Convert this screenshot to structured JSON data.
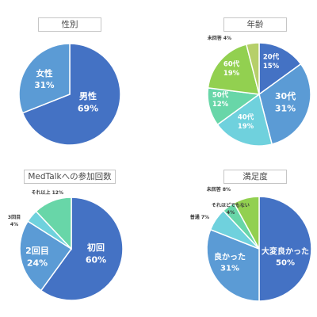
{
  "chart_data": [
    {
      "type": "pie",
      "title": "性別",
      "categories": [
        "男性",
        "女性"
      ],
      "values": [
        69,
        31
      ],
      "labels": [
        "69%",
        "31%"
      ],
      "colors": [
        "#4472c4",
        "#5b9bd5"
      ]
    },
    {
      "type": "pie",
      "title": "年齢",
      "categories": [
        "20代",
        "30代",
        "40代",
        "50代",
        "60代",
        "未回答"
      ],
      "values": [
        15,
        31,
        19,
        12,
        19,
        4
      ],
      "labels": [
        "15%",
        "31%",
        "19%",
        "12%",
        "19%",
        "4%"
      ],
      "colors": [
        "#4472c4",
        "#5b9bd5",
        "#6fd1dd",
        "#68d6a8",
        "#92d050",
        "#b6cf6a"
      ]
    },
    {
      "type": "pie",
      "title": "MedTalkへの参加回数",
      "categories": [
        "初回",
        "2回目",
        "3回目",
        "それ以上"
      ],
      "values": [
        60,
        24,
        4,
        12
      ],
      "labels": [
        "60%",
        "24%",
        "4%",
        "12%"
      ],
      "colors": [
        "#4472c4",
        "#5b9bd5",
        "#6fd1dd",
        "#68d6a8"
      ]
    },
    {
      "type": "pie",
      "title": "満足度",
      "categories": [
        "大変良かった",
        "良かった",
        "普通",
        "それほどでもない",
        "未回答"
      ],
      "values": [
        50,
        31,
        7,
        4,
        8
      ],
      "labels": [
        "50%",
        "31%",
        "7%",
        "4%",
        "8%"
      ],
      "colors": [
        "#4472c4",
        "#5b9bd5",
        "#6fd1dd",
        "#68d6a8",
        "#92d050"
      ]
    }
  ]
}
